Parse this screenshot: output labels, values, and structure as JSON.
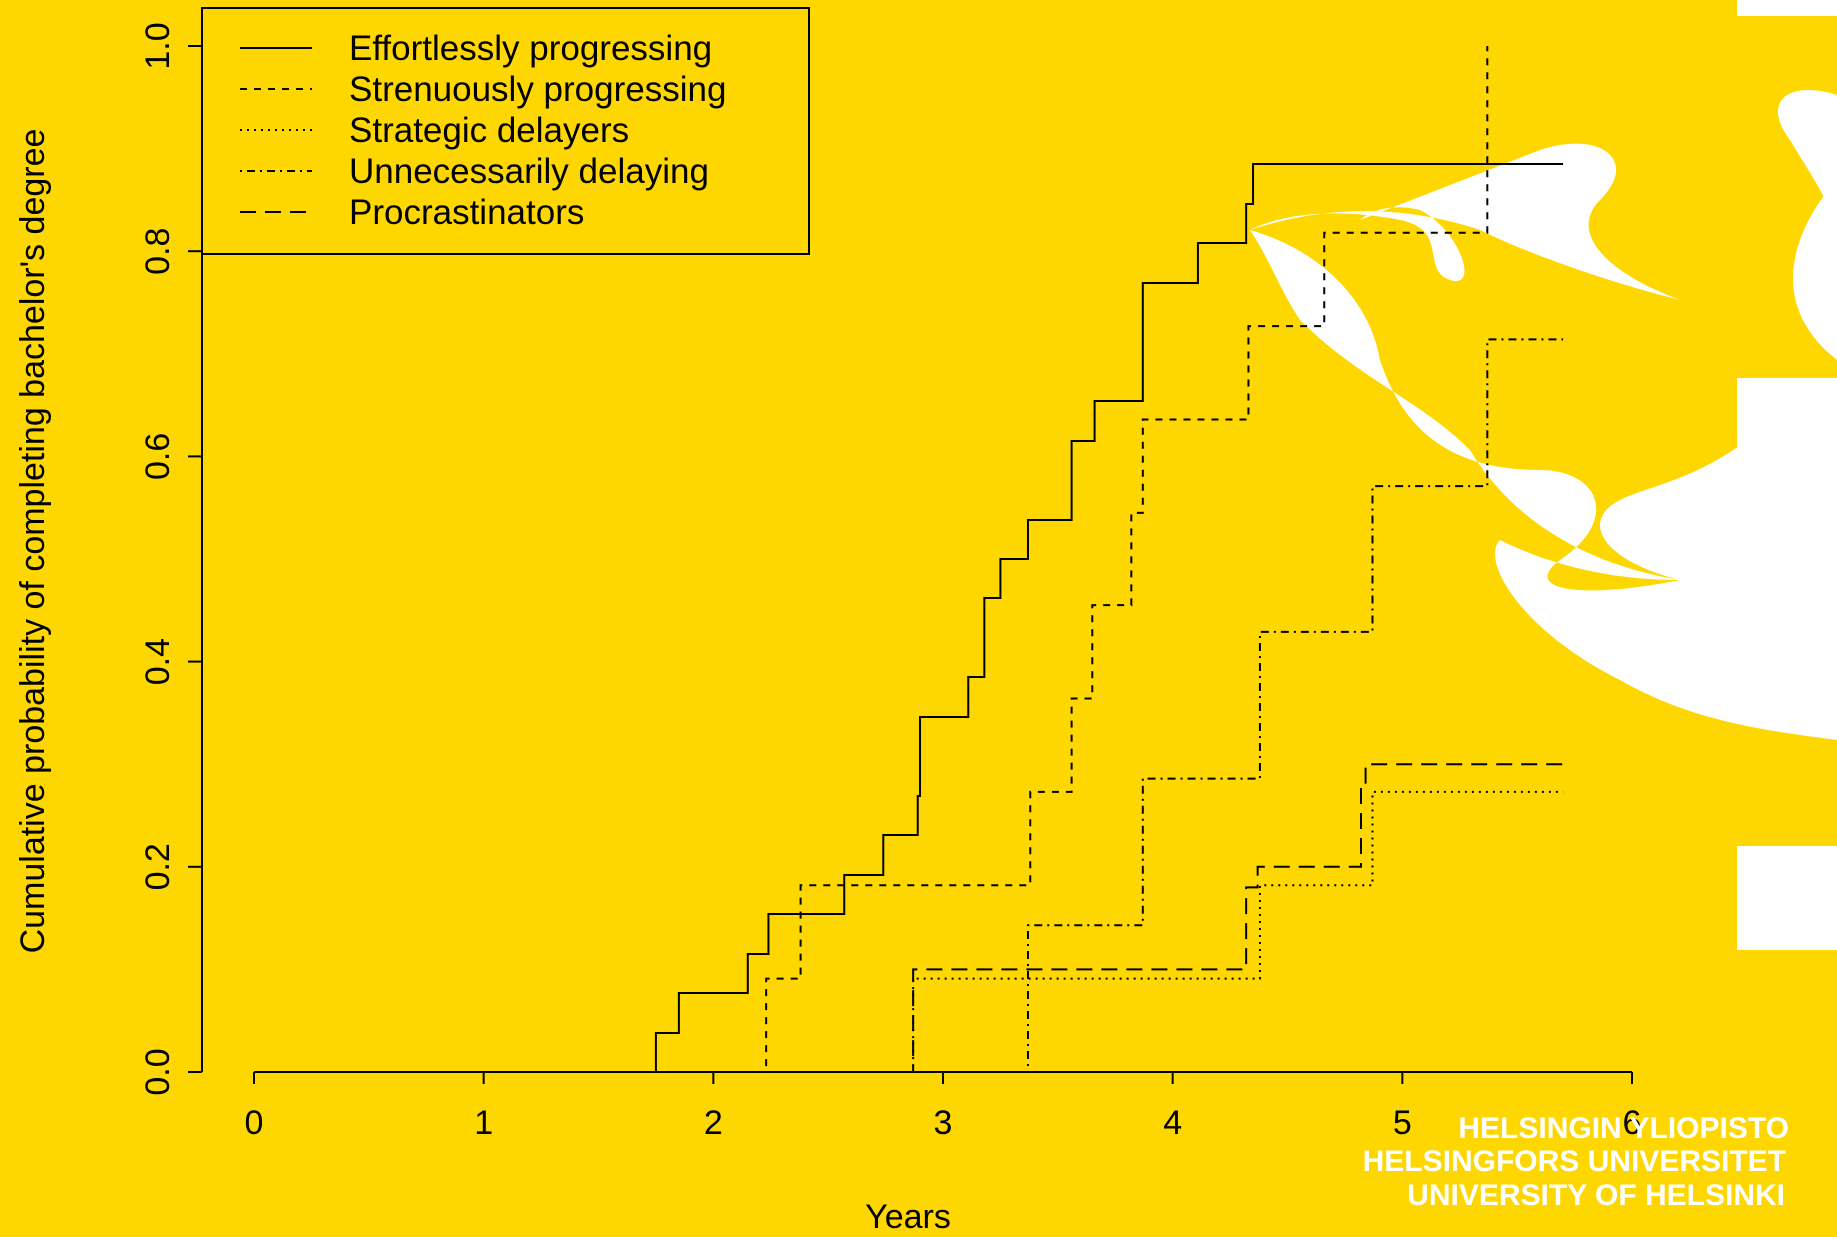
{
  "brand": {
    "lines": [
      "HELSINGIN YLIOPISTO",
      "HELSINGFORS UNIVERSITET",
      "UNIVERSITY OF HELSINKI"
    ],
    "flame_color": "#ffffff",
    "background_color": "#FFD700"
  },
  "chart_data": {
    "type": "line",
    "step": true,
    "title": "",
    "xlabel": "Years",
    "ylabel": "Cumulative probability of completing bachelor's degree",
    "xlim": [
      0,
      6
    ],
    "ylim": [
      0,
      1
    ],
    "x_ticks": [
      0,
      1,
      2,
      3,
      4,
      5,
      6
    ],
    "x_tick_labels": [
      "0",
      "1",
      "2",
      "3",
      "4",
      "5",
      "6"
    ],
    "y_ticks": [
      0,
      0.2,
      0.4,
      0.6,
      0.8,
      1.0
    ],
    "y_tick_labels": [
      "0.0",
      "0.2",
      "0.4",
      "0.6",
      "0.8",
      "1.0"
    ],
    "grid": false,
    "legend_position": "top-left",
    "series": [
      {
        "name": "Effortlessly progressing",
        "line_style": "solid",
        "x": [
          0,
          1.75,
          1.85,
          2.15,
          2.24,
          2.57,
          2.74,
          2.89,
          2.9,
          3.11,
          3.18,
          3.25,
          3.37,
          3.56,
          3.66,
          3.87,
          4.11,
          4.32,
          4.35,
          5.7
        ],
        "y": [
          0,
          0.038,
          0.077,
          0.115,
          0.154,
          0.192,
          0.231,
          0.269,
          0.346,
          0.385,
          0.462,
          0.5,
          0.538,
          0.615,
          0.654,
          0.769,
          0.808,
          0.846,
          0.885,
          0.885
        ]
      },
      {
        "name": "Strenuously progressing",
        "line_style": "dashed",
        "x": [
          0,
          2.23,
          2.38,
          3.38,
          3.56,
          3.65,
          3.82,
          3.87,
          4.33,
          4.66,
          5.37
        ],
        "y": [
          0,
          0.091,
          0.182,
          0.273,
          0.364,
          0.455,
          0.545,
          0.636,
          0.727,
          0.818,
          1.0
        ]
      },
      {
        "name": "Strategic delayers",
        "line_style": "dotted",
        "x": [
          0,
          2.87,
          4.38,
          4.87,
          5.7
        ],
        "y": [
          0,
          0.091,
          0.182,
          0.273,
          0.273
        ]
      },
      {
        "name": "Unnecessarily delaying",
        "line_style": "dotdash",
        "x": [
          0,
          3.37,
          3.87,
          4.38,
          4.87,
          5.37,
          5.7
        ],
        "y": [
          0,
          0.143,
          0.286,
          0.429,
          0.571,
          0.714,
          0.714
        ]
      },
      {
        "name": "Procrastinators",
        "line_style": "longdash",
        "x": [
          0,
          2.87,
          4.32,
          4.37,
          4.82,
          4.84,
          5.7
        ],
        "y": [
          0,
          0.1,
          0.18,
          0.2,
          0.28,
          0.3,
          0.3
        ]
      }
    ]
  }
}
